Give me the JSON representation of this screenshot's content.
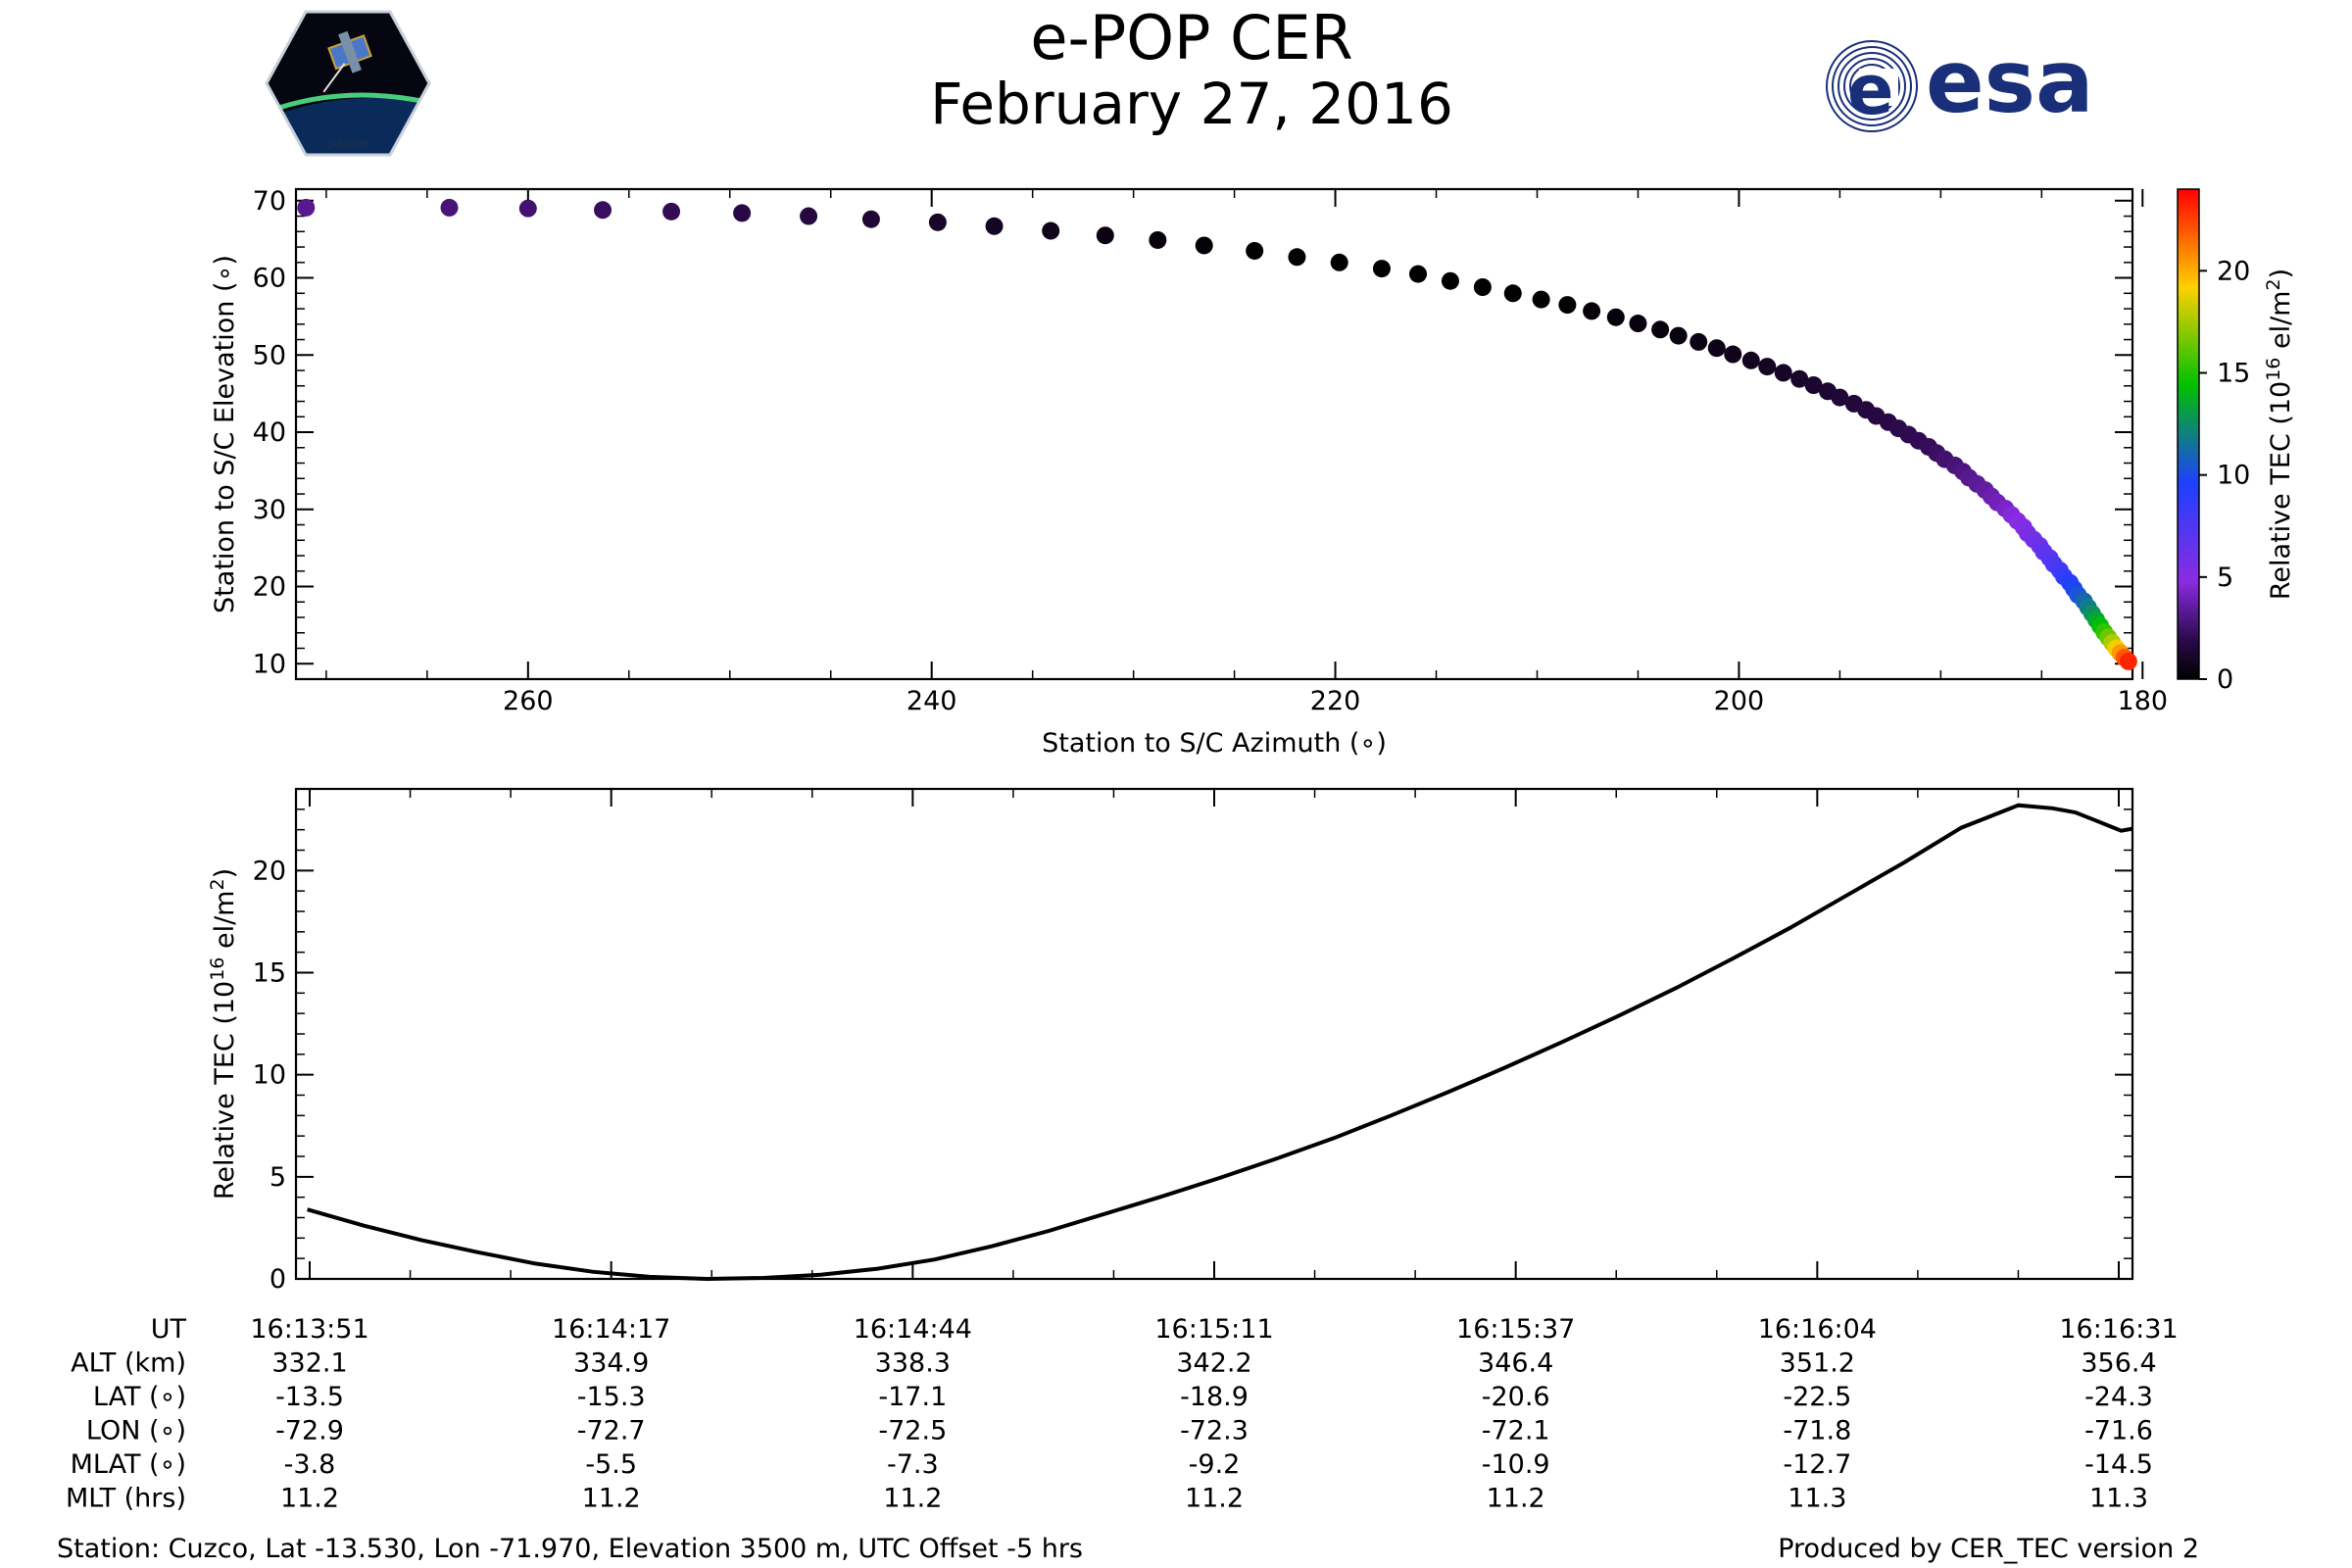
{
  "header": {
    "title": "e-POP CER",
    "date": "February 27, 2016",
    "cassiope_logo_text": "CASSIOPE",
    "esa_logo_text": "esa"
  },
  "colors": {
    "esa_blue": "#1a2f7a",
    "line": "#000000",
    "colormap": [
      "#000000",
      "#3a0a6a",
      "#8b2be2",
      "#1e40ff",
      "#00c000",
      "#ffd000",
      "#ff0000"
    ]
  },
  "chart_data": [
    {
      "type": "scatter",
      "xlabel": "Station to S/C Azimuth (∘)",
      "ylabel": "Station to S/C Elevation (∘)",
      "xlim": [
        271.5,
        180.5
      ],
      "ylim": [
        8,
        71.5
      ],
      "x_ticks": [
        260,
        240,
        220,
        200,
        180
      ],
      "y_ticks": [
        10,
        20,
        30,
        40,
        50,
        60,
        70
      ],
      "colorbar": {
        "label": "Relative TEC (10",
        "label_sup": "16",
        "label_unit": " el/m",
        "label_unit_sup": "2",
        "label_close": ")",
        "range": [
          0,
          24
        ],
        "ticks": [
          0,
          5,
          10,
          15,
          20
        ]
      },
      "points": [
        {
          "x": 271.0,
          "y": 69.1,
          "c": 3.2
        },
        {
          "x": 263.9,
          "y": 69.1,
          "c": 2.8
        },
        {
          "x": 260.0,
          "y": 69.0,
          "c": 2.6
        },
        {
          "x": 256.3,
          "y": 68.8,
          "c": 2.3
        },
        {
          "x": 252.9,
          "y": 68.6,
          "c": 2.1
        },
        {
          "x": 249.4,
          "y": 68.4,
          "c": 1.8
        },
        {
          "x": 246.1,
          "y": 68.0,
          "c": 1.6
        },
        {
          "x": 243.0,
          "y": 67.6,
          "c": 1.4
        },
        {
          "x": 239.7,
          "y": 67.2,
          "c": 1.1
        },
        {
          "x": 236.9,
          "y": 66.7,
          "c": 0.9
        },
        {
          "x": 234.1,
          "y": 66.1,
          "c": 0.7
        },
        {
          "x": 231.4,
          "y": 65.5,
          "c": 0.5
        },
        {
          "x": 228.8,
          "y": 64.9,
          "c": 0.3
        },
        {
          "x": 226.5,
          "y": 64.2,
          "c": 0.2
        },
        {
          "x": 224.0,
          "y": 63.5,
          "c": 0.1
        },
        {
          "x": 221.9,
          "y": 62.7,
          "c": 0.05
        },
        {
          "x": 219.8,
          "y": 62.0,
          "c": 0.0
        },
        {
          "x": 217.7,
          "y": 61.2,
          "c": 0.0
        },
        {
          "x": 215.9,
          "y": 60.5,
          "c": 0.0
        },
        {
          "x": 214.3,
          "y": 59.6,
          "c": 0.0
        },
        {
          "x": 212.7,
          "y": 58.8,
          "c": 0.05
        },
        {
          "x": 211.2,
          "y": 58.0,
          "c": 0.1
        },
        {
          "x": 209.8,
          "y": 57.2,
          "c": 0.1
        },
        {
          "x": 208.5,
          "y": 56.5,
          "c": 0.15
        },
        {
          "x": 207.3,
          "y": 55.7,
          "c": 0.2
        },
        {
          "x": 206.1,
          "y": 54.9,
          "c": 0.25
        },
        {
          "x": 205.0,
          "y": 54.1,
          "c": 0.3
        },
        {
          "x": 203.9,
          "y": 53.3,
          "c": 0.35
        },
        {
          "x": 203.0,
          "y": 52.5,
          "c": 0.4
        },
        {
          "x": 202.0,
          "y": 51.7,
          "c": 0.5
        },
        {
          "x": 201.1,
          "y": 50.9,
          "c": 0.6
        },
        {
          "x": 200.3,
          "y": 50.1,
          "c": 0.7
        },
        {
          "x": 199.4,
          "y": 49.3,
          "c": 0.8
        },
        {
          "x": 198.6,
          "y": 48.5,
          "c": 0.9
        },
        {
          "x": 197.8,
          "y": 47.7,
          "c": 1.0
        },
        {
          "x": 197.0,
          "y": 46.9,
          "c": 1.1
        },
        {
          "x": 196.3,
          "y": 46.1,
          "c": 1.2
        },
        {
          "x": 195.6,
          "y": 45.3,
          "c": 1.3
        },
        {
          "x": 195.0,
          "y": 44.5,
          "c": 1.4
        },
        {
          "x": 194.3,
          "y": 43.7,
          "c": 1.5
        },
        {
          "x": 193.7,
          "y": 42.9,
          "c": 1.6
        },
        {
          "x": 193.2,
          "y": 42.1,
          "c": 1.7
        },
        {
          "x": 192.6,
          "y": 41.3,
          "c": 1.8
        },
        {
          "x": 192.1,
          "y": 40.5,
          "c": 1.9
        },
        {
          "x": 191.6,
          "y": 39.7,
          "c": 2.0
        },
        {
          "x": 191.1,
          "y": 38.9,
          "c": 2.1
        },
        {
          "x": 190.6,
          "y": 38.1,
          "c": 2.2
        },
        {
          "x": 190.2,
          "y": 37.3,
          "c": 2.4
        },
        {
          "x": 189.8,
          "y": 36.5,
          "c": 2.6
        },
        {
          "x": 189.3,
          "y": 35.7,
          "c": 2.8
        },
        {
          "x": 188.9,
          "y": 34.9,
          "c": 3.0
        },
        {
          "x": 188.6,
          "y": 34.1,
          "c": 3.2
        },
        {
          "x": 188.2,
          "y": 33.3,
          "c": 3.4
        },
        {
          "x": 187.8,
          "y": 32.5,
          "c": 3.6
        },
        {
          "x": 187.5,
          "y": 31.7,
          "c": 3.8
        },
        {
          "x": 187.2,
          "y": 30.9,
          "c": 4.0
        },
        {
          "x": 186.8,
          "y": 30.1,
          "c": 4.3
        },
        {
          "x": 186.5,
          "y": 29.3,
          "c": 4.6
        },
        {
          "x": 186.2,
          "y": 28.5,
          "c": 4.9
        },
        {
          "x": 185.9,
          "y": 27.7,
          "c": 5.2
        },
        {
          "x": 185.7,
          "y": 26.9,
          "c": 5.5
        },
        {
          "x": 185.4,
          "y": 26.1,
          "c": 5.8
        },
        {
          "x": 185.1,
          "y": 25.3,
          "c": 6.2
        },
        {
          "x": 184.9,
          "y": 24.5,
          "c": 6.6
        },
        {
          "x": 184.6,
          "y": 23.7,
          "c": 7.0
        },
        {
          "x": 184.4,
          "y": 22.9,
          "c": 7.5
        },
        {
          "x": 184.1,
          "y": 22.1,
          "c": 8.0
        },
        {
          "x": 183.9,
          "y": 21.3,
          "c": 8.6
        },
        {
          "x": 183.6,
          "y": 20.5,
          "c": 9.2
        },
        {
          "x": 183.4,
          "y": 19.7,
          "c": 9.8
        },
        {
          "x": 183.2,
          "y": 18.9,
          "c": 10.4
        },
        {
          "x": 182.9,
          "y": 18.1,
          "c": 11.1
        },
        {
          "x": 182.7,
          "y": 17.3,
          "c": 11.8
        },
        {
          "x": 182.5,
          "y": 16.5,
          "c": 12.6
        },
        {
          "x": 182.3,
          "y": 15.7,
          "c": 13.4
        },
        {
          "x": 182.1,
          "y": 14.9,
          "c": 14.3
        },
        {
          "x": 181.9,
          "y": 14.1,
          "c": 15.3
        },
        {
          "x": 181.7,
          "y": 13.4,
          "c": 16.4
        },
        {
          "x": 181.5,
          "y": 12.7,
          "c": 17.7
        },
        {
          "x": 181.3,
          "y": 12.0,
          "c": 19.0
        },
        {
          "x": 181.1,
          "y": 11.4,
          "c": 20.5
        },
        {
          "x": 180.9,
          "y": 10.8,
          "c": 22.0
        },
        {
          "x": 180.7,
          "y": 10.3,
          "c": 23.2
        }
      ]
    },
    {
      "type": "line",
      "ylabel": "Relative TEC (10",
      "ylabel_sup": "16",
      "ylabel_unit": " el/m",
      "ylabel_unit_sup": "2",
      "ylabel_close": ")",
      "xlabel": "",
      "x_unit": "seconds after 16:13:51",
      "xlim": [
        -1,
        160
      ],
      "ylim": [
        0,
        24
      ],
      "y_ticks": [
        0,
        5,
        10,
        15,
        20
      ],
      "x": [
        0,
        5,
        10,
        15,
        20,
        25,
        30,
        35,
        40,
        45,
        50,
        55,
        60,
        65,
        70,
        75,
        80,
        85,
        90,
        95,
        100,
        105,
        110,
        115,
        120,
        125,
        130,
        135,
        140,
        145,
        150,
        153,
        155,
        157,
        159,
        160
      ],
      "y": [
        3.4,
        2.6,
        1.9,
        1.3,
        0.75,
        0.35,
        0.1,
        0.0,
        0.05,
        0.2,
        0.5,
        0.95,
        1.6,
        2.35,
        3.2,
        4.05,
        4.95,
        5.9,
        6.9,
        8.0,
        9.15,
        10.35,
        11.6,
        12.9,
        14.25,
        15.7,
        17.2,
        18.8,
        20.4,
        22.1,
        23.2,
        23.05,
        22.85,
        22.4,
        21.95,
        22.05
      ]
    }
  ],
  "table": {
    "row_labels": [
      "UT",
      "ALT (km)",
      "LAT (∘)",
      "LON (∘)",
      "MLAT (∘)",
      "MLT (hrs)"
    ],
    "columns": [
      [
        "16:13:51",
        "332.1",
        "-13.5",
        "-72.9",
        "-3.8",
        "11.2"
      ],
      [
        "16:14:17",
        "334.9",
        "-15.3",
        "-72.7",
        "-5.5",
        "11.2"
      ],
      [
        "16:14:44",
        "338.3",
        "-17.1",
        "-72.5",
        "-7.3",
        "11.2"
      ],
      [
        "16:15:11",
        "342.2",
        "-18.9",
        "-72.3",
        "-9.2",
        "11.2"
      ],
      [
        "16:15:37",
        "346.4",
        "-20.6",
        "-72.1",
        "-10.9",
        "11.2"
      ],
      [
        "16:16:04",
        "351.2",
        "-22.5",
        "-71.8",
        "-12.7",
        "11.3"
      ],
      [
        "16:16:31",
        "356.4",
        "-24.3",
        "-71.6",
        "-14.5",
        "11.3"
      ]
    ]
  },
  "footer": {
    "station": "Station: Cuzco, Lat -13.530, Lon -71.970, Elevation 3500 m, UTC Offset -5 hrs",
    "produced": "Produced by CER_TEC version 2"
  }
}
